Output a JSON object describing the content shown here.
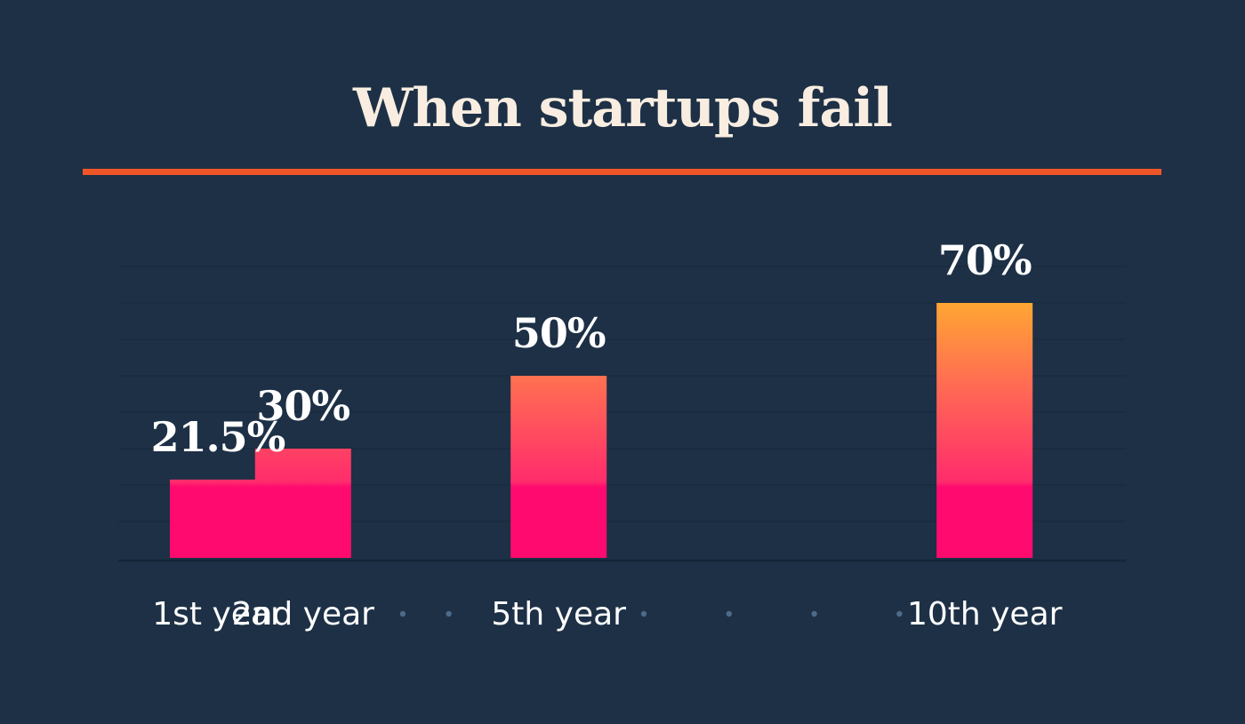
{
  "colors": {
    "background": "#1d3046",
    "title": "#f8ede0",
    "rule": "#ee5628",
    "bar_bottom": "#ff0a6e",
    "bar_mid": "#ff4a66",
    "bar_top": "#ffb22c",
    "dot": "#4d6a8a"
  },
  "chart_data": {
    "type": "bar",
    "title": "When startups fail",
    "xlabel": "",
    "ylabel": "",
    "ylim": [
      0,
      80
    ],
    "grid": true,
    "legend": "none",
    "categories": [
      "1st year",
      "2nd year",
      "5th year",
      "10th year"
    ],
    "values": [
      21.5,
      30,
      50,
      70
    ],
    "value_labels": [
      "21.5%",
      "30%",
      "50%",
      "70%"
    ],
    "x": [
      1,
      2,
      5,
      10
    ]
  }
}
